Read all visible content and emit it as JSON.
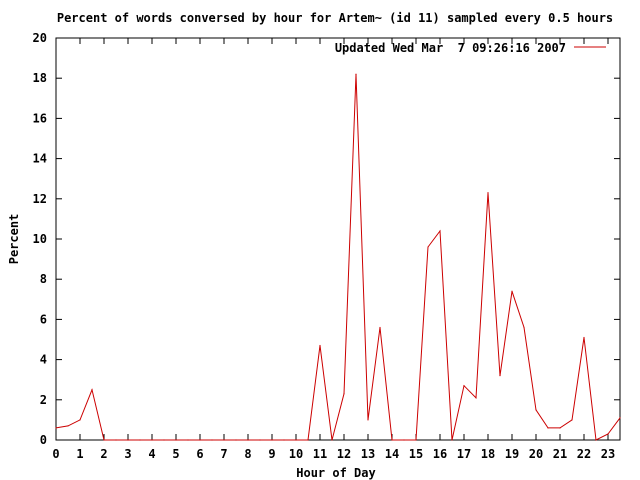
{
  "chart_data": {
    "type": "line",
    "title": "Percent of words conversed by hour for Artem~ (id 11) sampled every 0.5 hours",
    "xlabel": "Hour of Day",
    "ylabel": "Percent",
    "xlim": [
      0,
      23.5
    ],
    "ylim": [
      0,
      20
    ],
    "x_ticks": [
      0,
      1,
      2,
      3,
      4,
      5,
      6,
      7,
      8,
      9,
      10,
      11,
      12,
      13,
      14,
      15,
      16,
      17,
      18,
      19,
      20,
      21,
      22,
      23
    ],
    "y_ticks": [
      0,
      2,
      4,
      6,
      8,
      10,
      12,
      14,
      16,
      18,
      20
    ],
    "grid": false,
    "legend_position": "top-right",
    "series": [
      {
        "name": "Updated Wed Mar  7 09:26:16 2007",
        "color": "#cc0000",
        "x": [
          0,
          0.5,
          1,
          1.5,
          2,
          2.5,
          3,
          3.5,
          4,
          4.5,
          5,
          5.5,
          6,
          6.5,
          7,
          7.5,
          8,
          8.5,
          9,
          9.5,
          10,
          10.5,
          11,
          11.5,
          12,
          12.5,
          13,
          13.5,
          14,
          14.5,
          15,
          15.5,
          16,
          16.5,
          17,
          17.5,
          18,
          18.5,
          19,
          19.5,
          20,
          20.5,
          21,
          21.5,
          22,
          22.5,
          23,
          23.5
        ],
        "values": [
          0.6,
          0.7,
          1.0,
          2.5,
          0,
          0,
          0,
          0,
          0,
          0,
          0,
          0,
          0,
          0,
          0,
          0,
          0,
          0,
          0,
          0,
          0,
          0,
          4.7,
          0,
          2.3,
          18.2,
          1.0,
          5.6,
          0,
          0,
          0,
          9.6,
          10.4,
          0,
          2.7,
          2.1,
          12.3,
          3.2,
          7.4,
          5.6,
          1.5,
          0.6,
          0.6,
          1.0,
          5.1,
          0,
          0.3,
          1.1
        ]
      }
    ]
  }
}
